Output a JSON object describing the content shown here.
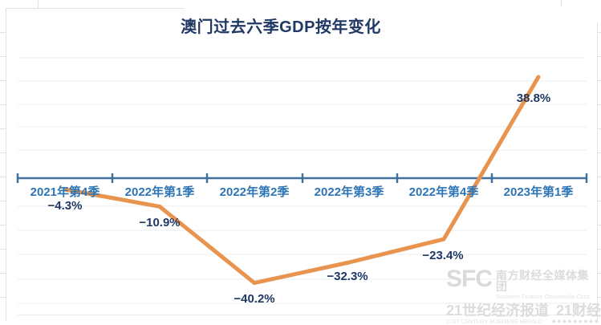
{
  "chart_data": {
    "type": "line",
    "title": "澳门过去六季GDP按年变化",
    "categories": [
      "2021年第4季",
      "2022年第1季",
      "2022年第2季",
      "2022年第3季",
      "2022年第4季",
      "2023年第1季"
    ],
    "values": [
      -4.3,
      -10.9,
      -40.2,
      -32.3,
      -23.4,
      38.8
    ],
    "value_labels": [
      "−4.3%",
      "−10.9%",
      "−40.2%",
      "−32.3%",
      "−23.4%",
      "38.8%"
    ],
    "xlabel": "",
    "ylabel": "",
    "ylim": [
      -45,
      45
    ],
    "baseline": 0,
    "grid": "on",
    "legend": "none",
    "colors": {
      "line": "#E8934E",
      "axis": "#41719C",
      "category_label": "#2E75B6",
      "value_label": "#1F3864",
      "title": "#1F3864",
      "gridline": "#E9EDF1",
      "edge_ruler": "#DFE3E8"
    }
  },
  "watermark": {
    "sfc": "SFC",
    "group_cn": "南方财经全媒体集团",
    "group_en": "Southern Finance Omnimedia Corp.",
    "herald_cn": "21世纪经济报道",
    "brand_cn": "21财经",
    "herald_en": "21ST CENTURY BUSINESS HERALD",
    "dots": "◆◆◆◆◆◆◆◆◆"
  }
}
